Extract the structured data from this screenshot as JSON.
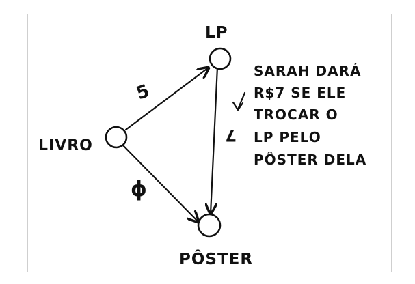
{
  "nodes": {
    "lp": "LP",
    "livro": "LIVRO",
    "poster": "PÔSTER"
  },
  "edges": {
    "livro_lp": "5",
    "livro_poster": "ϕ",
    "lp_poster": "7"
  },
  "note": {
    "line1": "SARAH DARÁ",
    "line2": "R$7 SE ELE",
    "line3": "TROCAR O",
    "line4": "LP PELO",
    "line5": "PÔSTER DELA"
  }
}
